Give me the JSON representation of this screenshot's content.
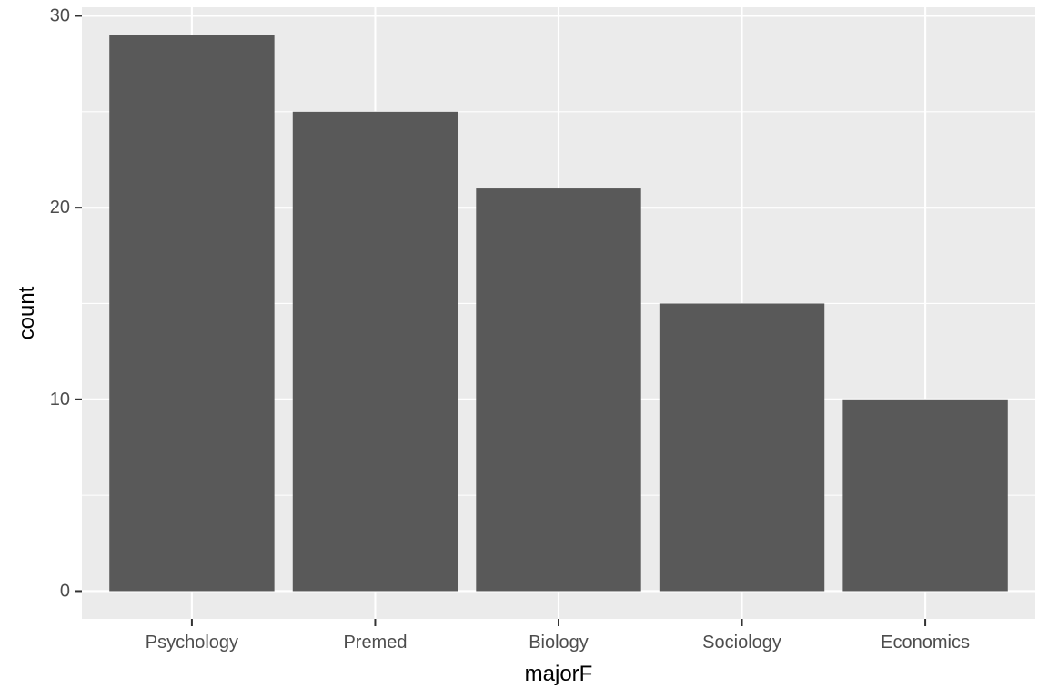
{
  "chart_data": {
    "type": "bar",
    "categories": [
      "Psychology",
      "Premed",
      "Biology",
      "Sociology",
      "Economics"
    ],
    "values": [
      29,
      25,
      21,
      15,
      10
    ],
    "title": "",
    "xlabel": "majorF",
    "ylabel": "count",
    "ylim": [
      -1.45,
      30.45
    ],
    "yticks": [
      0,
      10,
      20,
      30
    ],
    "grid": true,
    "legend": "none",
    "colors": {
      "panel_background": "#EBEBEB",
      "gridline": "#FFFFFF",
      "bar_fill": "#595959",
      "tick_mark": "#333333",
      "tick_text": "#4D4D4D",
      "axis_title": "#000000"
    }
  }
}
